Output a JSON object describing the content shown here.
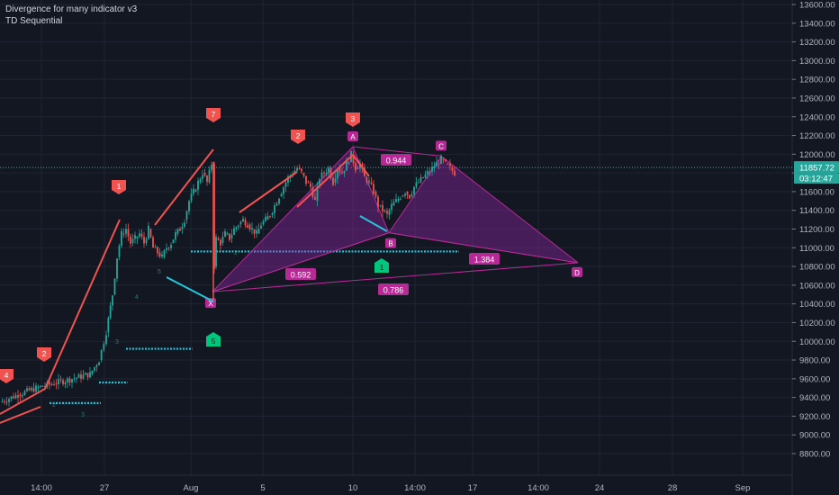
{
  "indicators": [
    "Divergence for many indicator v3",
    "TD Sequential"
  ],
  "price_scale": {
    "ticks": [
      "13600.00",
      "13400.00",
      "13200.00",
      "13000.00",
      "12800.00",
      "12600.00",
      "12400.00",
      "12200.00",
      "12000.00",
      "11800.00",
      "11600.00",
      "11400.00",
      "11200.00",
      "11000.00",
      "10800.00",
      "10600.00",
      "10400.00",
      "10200.00",
      "10000.00",
      "9800.00",
      "9600.00",
      "9400.00",
      "9200.00",
      "9000.00",
      "8800.00"
    ],
    "last_price": "11857.72",
    "countdown": "03:12:47"
  },
  "time_axis": [
    "14:00",
    "27",
    "Aug",
    "5",
    "10",
    "14:00",
    "17",
    "14:00",
    "24",
    "28",
    "Sep"
  ],
  "colors": {
    "background": "#131722",
    "grid": "#1f2432",
    "up": "#26a69a",
    "down": "#ef5350",
    "harmonic": "#b72a96",
    "harmonic_fill": "#9c27b0",
    "td_red": "#f05350",
    "td_green": "#00c77b",
    "level": "#26c6da",
    "price_line": "#5b9c9a"
  },
  "chart_data": {
    "type": "candlestick",
    "ylim": [
      8750,
      13700
    ],
    "x_labels": [
      "14:00",
      "27",
      "Aug",
      "5",
      "10",
      "14:00",
      "17",
      "14:00",
      "24",
      "28",
      "Sep"
    ],
    "candles_close_path": [
      [
        0,
        9350
      ],
      [
        20,
        9430
      ],
      [
        40,
        9500
      ],
      [
        60,
        9550
      ],
      [
        80,
        9600
      ],
      [
        100,
        9650
      ],
      [
        110,
        9800
      ],
      [
        118,
        10100
      ],
      [
        125,
        10500
      ],
      [
        130,
        10900
      ],
      [
        135,
        11150
      ],
      [
        140,
        11200
      ],
      [
        145,
        11050
      ],
      [
        150,
        11100
      ],
      [
        155,
        11150
      ],
      [
        160,
        11050
      ],
      [
        165,
        11200
      ],
      [
        170,
        11000
      ],
      [
        175,
        10950
      ],
      [
        180,
        10900
      ],
      [
        185,
        11000
      ],
      [
        190,
        11050
      ],
      [
        195,
        11150
      ],
      [
        200,
        11200
      ],
      [
        205,
        11300
      ],
      [
        210,
        11500
      ],
      [
        215,
        11600
      ],
      [
        220,
        11700
      ],
      [
        225,
        11800
      ],
      [
        230,
        11700
      ],
      [
        235,
        11900
      ],
      [
        238,
        10800
      ],
      [
        240,
        11100
      ],
      [
        245,
        11050
      ],
      [
        250,
        11150
      ],
      [
        255,
        11100
      ],
      [
        260,
        11200
      ],
      [
        265,
        11250
      ],
      [
        270,
        11300
      ],
      [
        275,
        11250
      ],
      [
        280,
        11200
      ],
      [
        285,
        11150
      ],
      [
        290,
        11250
      ],
      [
        295,
        11300
      ],
      [
        300,
        11350
      ],
      [
        305,
        11450
      ],
      [
        310,
        11550
      ],
      [
        315,
        11650
      ],
      [
        320,
        11750
      ],
      [
        325,
        11800
      ],
      [
        330,
        11850
      ],
      [
        335,
        11800
      ],
      [
        340,
        11700
      ],
      [
        345,
        11650
      ],
      [
        350,
        11500
      ],
      [
        355,
        11750
      ],
      [
        360,
        11800
      ],
      [
        365,
        11850
      ],
      [
        370,
        11700
      ],
      [
        375,
        11850
      ],
      [
        380,
        11800
      ],
      [
        385,
        11900
      ],
      [
        390,
        12000
      ],
      [
        395,
        11850
      ],
      [
        400,
        11900
      ],
      [
        405,
        11750
      ],
      [
        410,
        11700
      ],
      [
        415,
        11600
      ],
      [
        420,
        11450
      ],
      [
        425,
        11400
      ],
      [
        430,
        11350
      ],
      [
        435,
        11450
      ],
      [
        440,
        11500
      ],
      [
        445,
        11550
      ],
      [
        450,
        11600
      ],
      [
        455,
        11550
      ],
      [
        460,
        11650
      ],
      [
        465,
        11700
      ],
      [
        470,
        11750
      ],
      [
        475,
        11800
      ],
      [
        480,
        11850
      ],
      [
        485,
        11900
      ],
      [
        490,
        11950
      ],
      [
        495,
        11900
      ],
      [
        500,
        11850
      ],
      [
        505,
        11800
      ]
    ],
    "harmonic_pattern": {
      "points": {
        "X": 10530,
        "A": 12080,
        "B": 11160,
        "C": 11980,
        "D": 10840
      },
      "ratios": [
        "0.944",
        "0.592",
        "1.384",
        "0.786"
      ],
      "labels": [
        "X",
        "A",
        "B",
        "C",
        "D"
      ]
    },
    "td_sequential_labels": {
      "red": [
        "4",
        "2",
        "1",
        "7",
        "2",
        "3"
      ],
      "green": [
        "5",
        "1"
      ]
    },
    "levels": [
      9340,
      9560,
      9920,
      10960
    ]
  }
}
